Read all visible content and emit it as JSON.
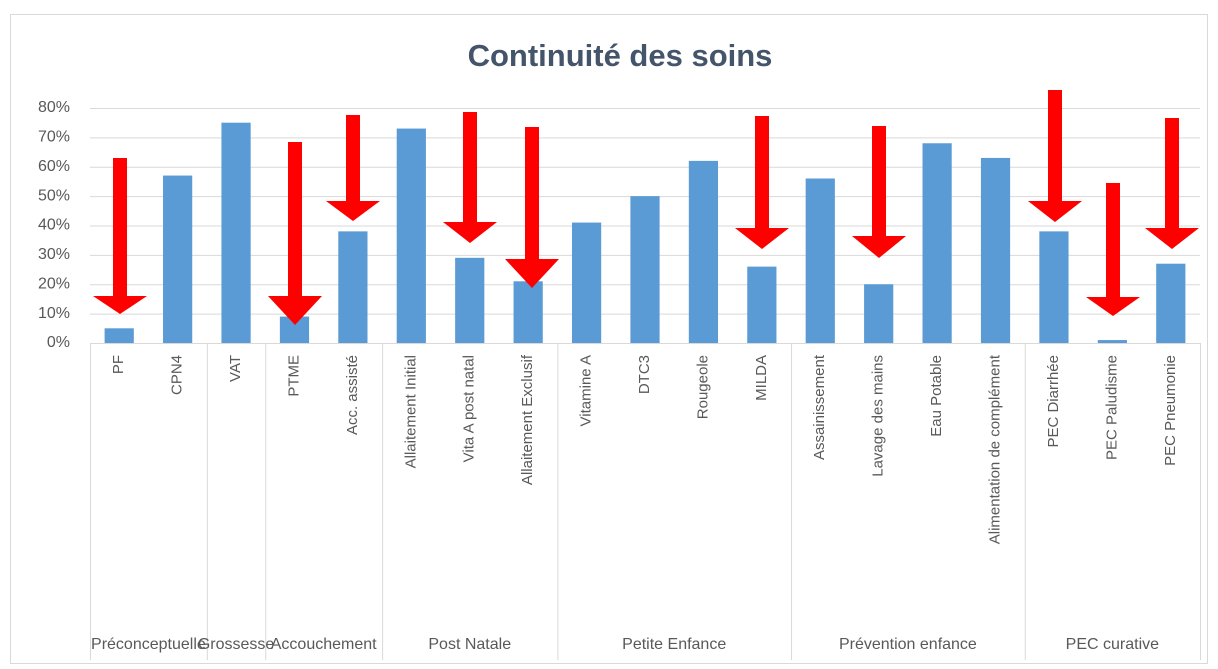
{
  "chart_data": {
    "type": "bar",
    "title": "Continuité des soins",
    "color": "#5b9bd5",
    "ylim": [
      0,
      80
    ],
    "yticks": [
      {
        "value": 0,
        "label": "0%"
      },
      {
        "value": 10,
        "label": "10%"
      },
      {
        "value": 20,
        "label": "20%"
      },
      {
        "value": 30,
        "label": "30%"
      },
      {
        "value": 40,
        "label": "40%"
      },
      {
        "value": 50,
        "label": "50%"
      },
      {
        "value": 60,
        "label": "60%"
      },
      {
        "value": 70,
        "label": "70%"
      },
      {
        "value": 80,
        "label": "80%"
      }
    ],
    "grid": true,
    "groups": [
      {
        "name": "Préconceptuelle",
        "categories": [
          "PF",
          "CPN4"
        ],
        "values": [
          5,
          57
        ]
      },
      {
        "name": "Grossesse",
        "categories": [
          "VAT"
        ],
        "values": [
          75
        ]
      },
      {
        "name": "Accouchement",
        "categories": [
          "PTME",
          "Acc. assisté"
        ],
        "values": [
          9,
          38
        ]
      },
      {
        "name": "Post Natale",
        "categories": [
          "Allaitement Initial",
          "Vita A post natal",
          "Allaitement Exclusif"
        ],
        "values": [
          73,
          29,
          21
        ]
      },
      {
        "name": "Petite Enfance",
        "categories": [
          "Vitamine A",
          "DTC3",
          "Rougeole",
          "MILDA"
        ],
        "values": [
          41,
          50,
          62,
          26
        ]
      },
      {
        "name": "Prévention enfance",
        "categories": [
          "Assainissement",
          "Lavage des mains",
          "Eau Potable",
          "Alimentation de complément"
        ],
        "values": [
          56,
          20,
          68,
          63
        ]
      },
      {
        "name": "PEC curative",
        "categories": [
          "PEC Diarrhée",
          "PEC Paludisme",
          "PEC Pneumonie"
        ],
        "values": [
          38,
          1,
          27
        ]
      }
    ]
  }
}
